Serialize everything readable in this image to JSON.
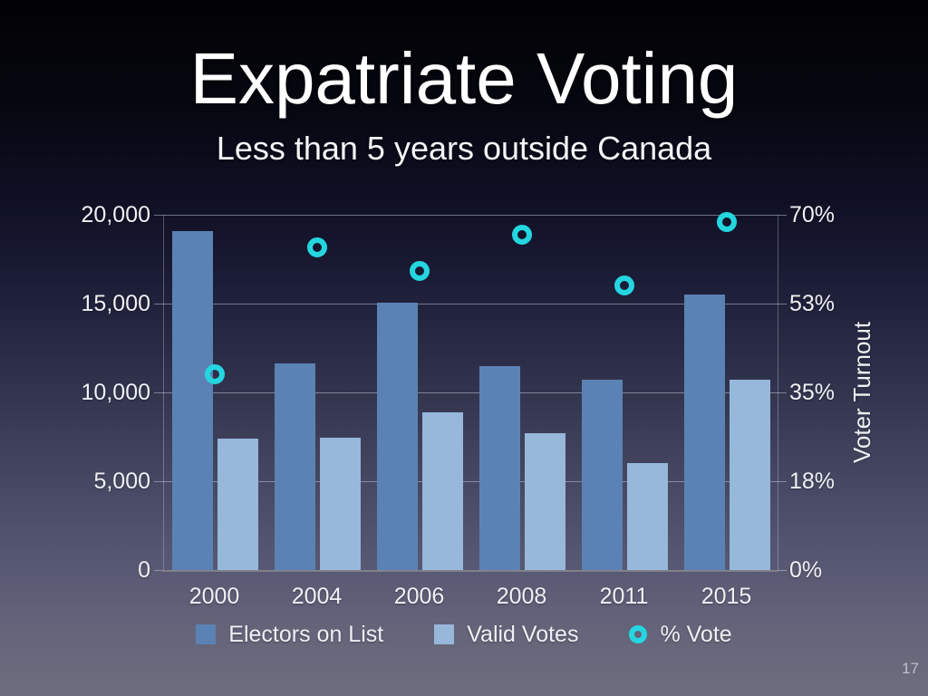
{
  "slide": {
    "title": "Expatriate Voting",
    "subtitle": "Less than 5 years outside Canada",
    "page_number": "17"
  },
  "chart_data": {
    "type": "bar",
    "subtype": "grouped-bars-with-scatter-overlay",
    "title": "",
    "categories": [
      "2000",
      "2004",
      "2006",
      "2008",
      "2011",
      "2015"
    ],
    "series": [
      {
        "name": "Electors on List",
        "type": "bar",
        "axis": "left",
        "color": "#5b82b4",
        "values": [
          19100,
          11650,
          15050,
          11500,
          10700,
          15500
        ]
      },
      {
        "name": "Valid Votes",
        "type": "bar",
        "axis": "left",
        "color": "#97b7db",
        "values": [
          7400,
          7450,
          8900,
          7700,
          6000,
          10700
        ]
      },
      {
        "name": "% Vote",
        "type": "scatter",
        "axis": "right",
        "color": "#24d6e0",
        "values": [
          38.5,
          63.5,
          59,
          66,
          56,
          68.5
        ]
      }
    ],
    "left_axis": {
      "min": 0,
      "max": 20000,
      "ticks": [
        "20,000",
        "15,000",
        "10,000",
        "5,000",
        "0"
      ]
    },
    "right_axis": {
      "title": "Voter Turnout",
      "min": 0,
      "max": 70,
      "ticks": [
        "70%",
        "53%",
        "35%",
        "18%",
        "0%"
      ]
    },
    "grid": true,
    "legend_position": "bottom"
  },
  "colors": {
    "grid_line": "rgba(205,208,220,0.5)",
    "axis_line": "rgba(205,208,220,0.35)",
    "baseline": "#81818b",
    "label_text": "#eef0f4"
  }
}
